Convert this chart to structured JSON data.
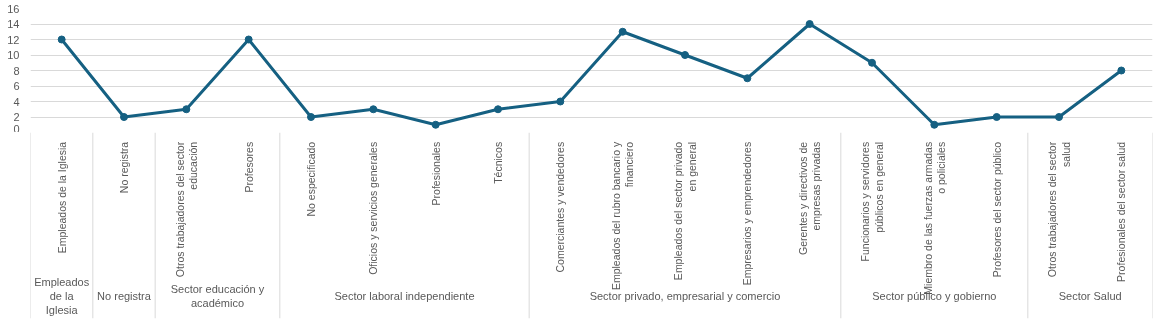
{
  "chart_data": {
    "type": "line",
    "categories": [
      "Empleados de la Iglesia",
      "No registra",
      "Otros trabajadores del sector educación",
      "Profesores",
      "No especificado",
      "Oficios y servicios generales",
      "Profesionales",
      "Técnicos",
      "Comerciantes y vendedores",
      "Empleados del rubro bancario y financiero",
      "Empleados del sector privado en general",
      "Empresarios y emprendedores",
      "Gerentes y directivos de empresas privadas",
      "Funcionarios y servidores públicos en general",
      "Miembro de las fuerzas armadas o policiales",
      "Profesores del sector público",
      "Otros trabajadores del sector salud",
      "Profesionales del sector salud"
    ],
    "series": [
      {
        "color": "#156082",
        "values": [
          12,
          2,
          3,
          12,
          2,
          3,
          1,
          3,
          4,
          13,
          10,
          7,
          14,
          9,
          1,
          2,
          2,
          8
        ]
      }
    ],
    "ylim": [
      0,
      16
    ],
    "yticks": [
      0,
      2,
      4,
      6,
      8,
      10,
      12,
      14,
      16
    ],
    "grid": "y",
    "marker": "circle",
    "line_style": "solid",
    "annotations": [
      "Empleados de la Iglesia",
      "No registra",
      "Sector educación y académico",
      "Sector laboral independiente",
      "Sector privado, empresarial y comercio",
      "Sector público y gobierno",
      "Sector Salud"
    ]
  }
}
